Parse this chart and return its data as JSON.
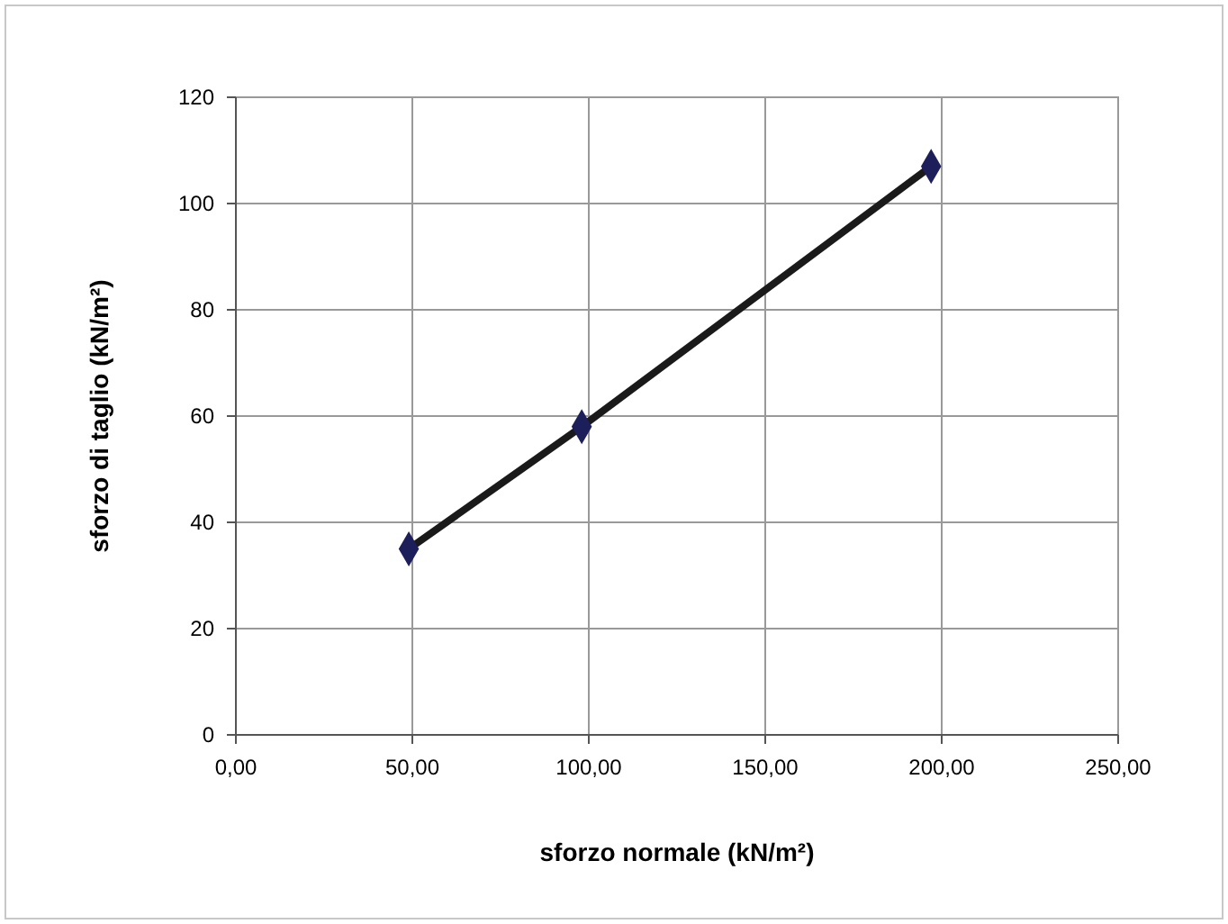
{
  "chart_data": {
    "type": "line",
    "xlabel": "sforzo normale (kN/m²)",
    "ylabel": "sforzo di taglio (kN/m²)",
    "x": [
      49,
      98,
      197
    ],
    "series": [
      {
        "color": "#1a1a1a",
        "values": [
          35,
          58,
          107
        ]
      }
    ],
    "marker": "diamond",
    "line_style": "solid",
    "grid": true,
    "xlim": [
      0,
      250
    ],
    "xticks": [
      {
        "value": 0,
        "label": "0,00"
      },
      {
        "value": 50,
        "label": "50,00"
      },
      {
        "value": 100,
        "label": "100,00"
      },
      {
        "value": 150,
        "label": "150,00"
      },
      {
        "value": 200,
        "label": "200,00"
      },
      {
        "value": 250,
        "label": "250,00"
      }
    ],
    "ylim": [
      0,
      120
    ],
    "yticks": [
      0,
      20,
      40,
      60,
      80,
      100,
      120
    ]
  }
}
